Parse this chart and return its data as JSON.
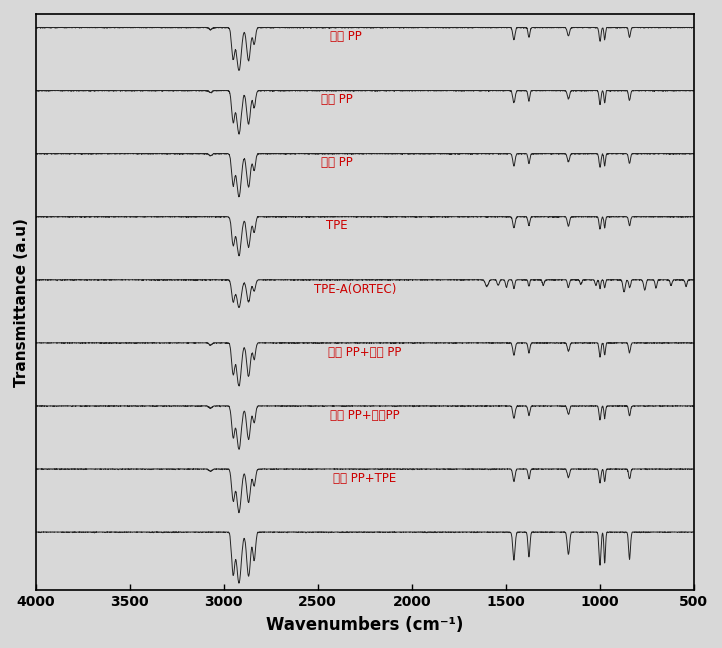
{
  "xlabel": "Wavenumbers (cm⁻¹)",
  "ylabel": "Transmittance (a.u)",
  "xmin": 500,
  "xmax": 4000,
  "x_ticks": [
    4000,
    3500,
    3000,
    2500,
    2000,
    1500,
    1000,
    500
  ],
  "labels": [
    "항균 PP",
    "대한 PP",
    "미래 PP",
    "TPE",
    "TPE-A(ORTEC)",
    "항균 PP+대한 PP",
    "항균 PP+미래PP",
    "항균 PP+TPE",
    ""
  ],
  "label_color": "#cc0000",
  "line_color": "#1a1a1a",
  "background": "#e8e8e8",
  "fig_width": 7.22,
  "fig_height": 6.48,
  "dpi": 100,
  "n_spectra": 9,
  "label_x_wn": [
    2350,
    2400,
    2400,
    2400,
    2300,
    2250,
    2250,
    2250,
    null
  ],
  "seeds": [
    10,
    11,
    12,
    13,
    14,
    15,
    16,
    17,
    18
  ]
}
